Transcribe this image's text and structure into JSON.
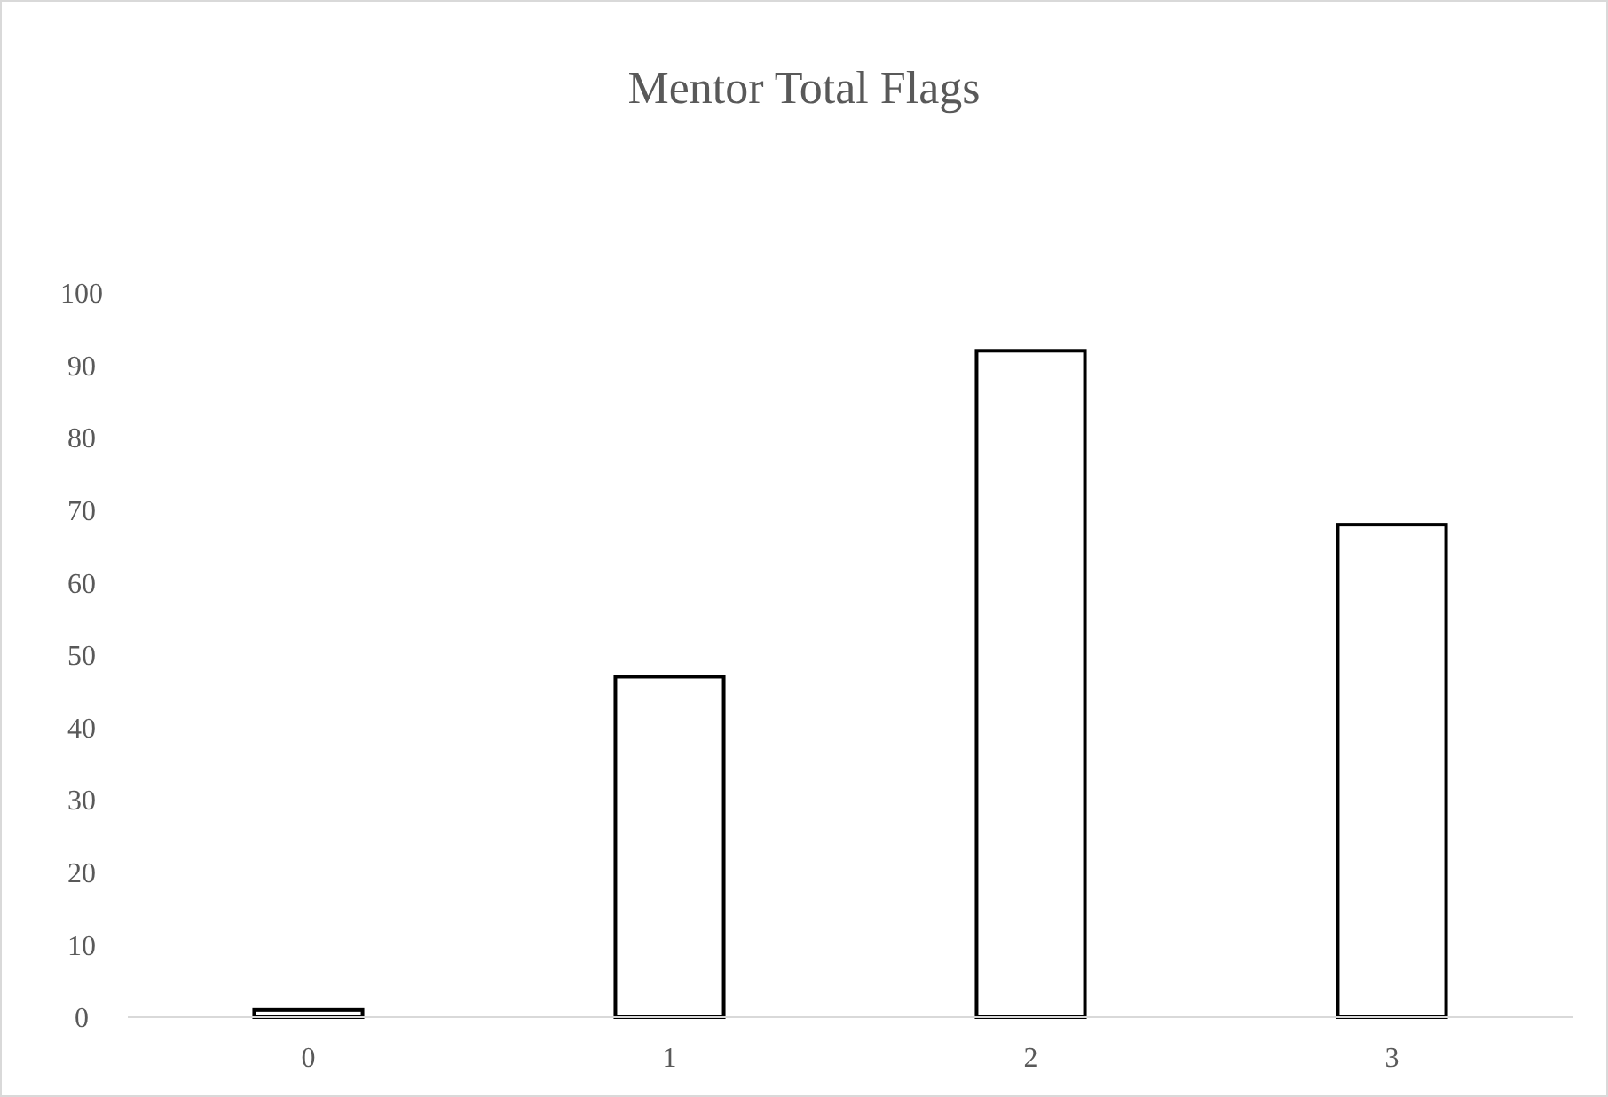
{
  "chart_data": {
    "type": "bar",
    "title": "Mentor Total Flags",
    "categories": [
      "0",
      "1",
      "2",
      "3"
    ],
    "values": [
      1,
      47,
      92,
      68
    ],
    "color": "#ffffff",
    "ylim": [
      0,
      100
    ],
    "yticks": [
      0,
      10,
      20,
      30,
      40,
      50,
      60,
      70,
      80,
      90,
      100
    ],
    "grid": false
  }
}
